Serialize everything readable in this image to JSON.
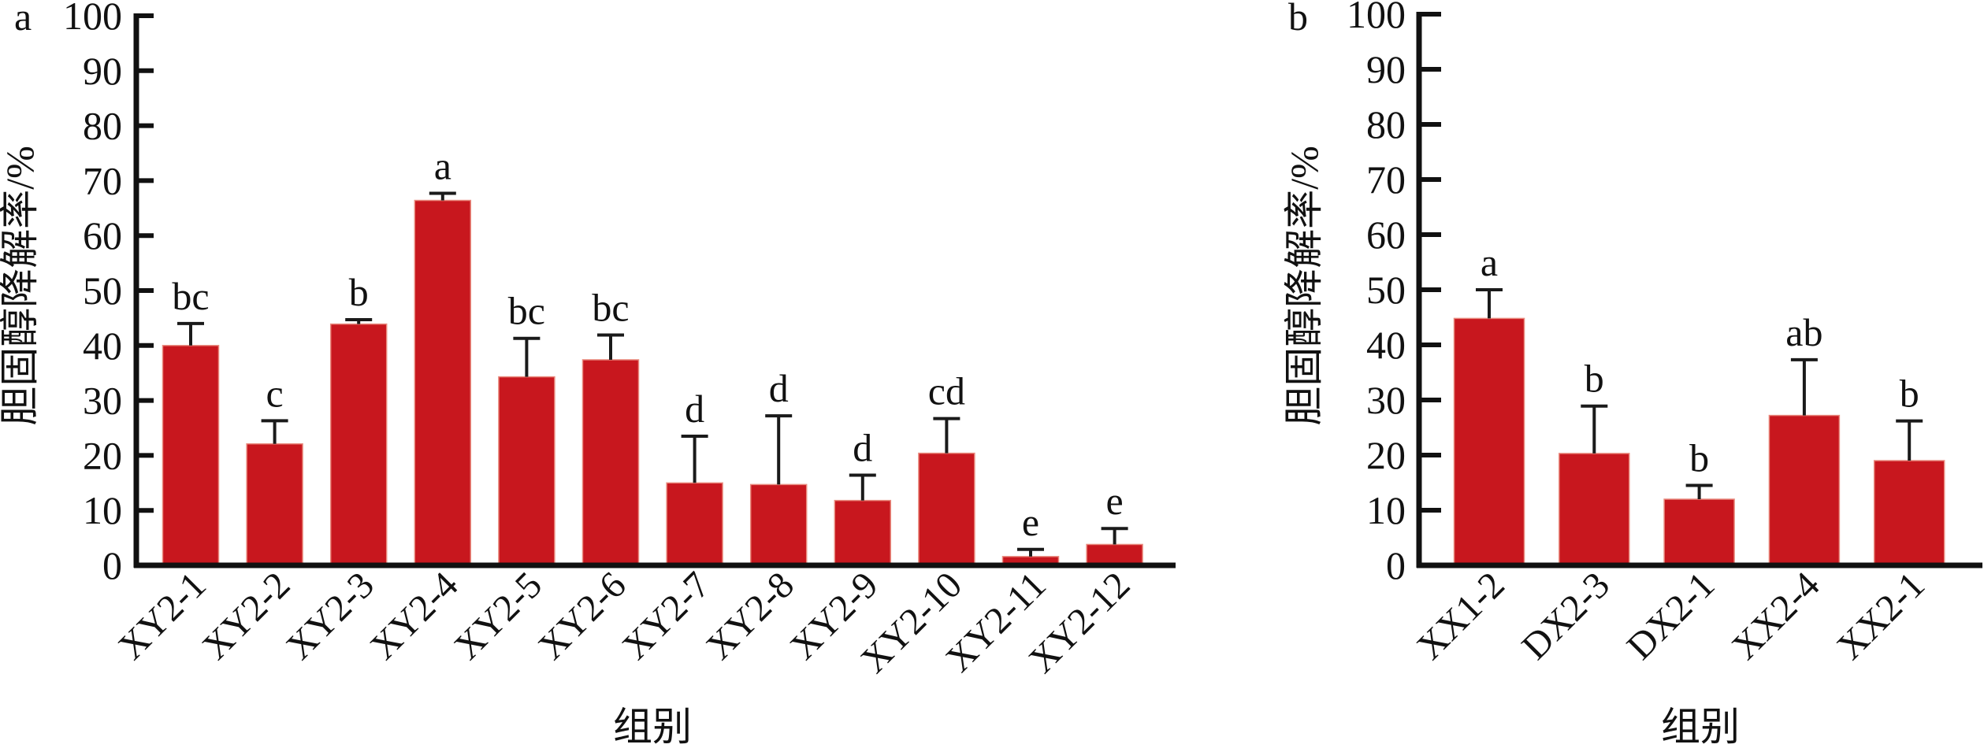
{
  "chart_data": [
    {
      "type": "bar",
      "panel_label": "a",
      "title": "",
      "xlabel": "组别",
      "ylabel": "胆固醇降解率/%",
      "ylim": [
        0,
        100
      ],
      "yticks": [
        0,
        10,
        20,
        30,
        40,
        50,
        60,
        70,
        80,
        90,
        100
      ],
      "grid": false,
      "categories": [
        "XY2-1",
        "XY2-2",
        "XY2-3",
        "XY2-4",
        "XY2-5",
        "XY2-6",
        "XY2-7",
        "XY2-8",
        "XY2-9",
        "XY2-10",
        "XY2-11",
        "XY2-12"
      ],
      "values": [
        40.0,
        22.1,
        43.9,
        66.4,
        34.3,
        37.4,
        15.0,
        14.7,
        11.8,
        20.4,
        1.6,
        3.8
      ],
      "error": [
        4.0,
        4.2,
        0.8,
        1.3,
        7.0,
        4.5,
        8.5,
        12.5,
        4.6,
        6.3,
        1.3,
        2.9
      ],
      "significance": [
        "bc",
        "c",
        "b",
        "a",
        "bc",
        "bc",
        "d",
        "d",
        "d",
        "cd",
        "e",
        "e"
      ],
      "bar_color": "#C8171E"
    },
    {
      "type": "bar",
      "panel_label": "b",
      "title": "",
      "xlabel": "组别",
      "ylabel": "胆固醇降解率/%",
      "ylim": [
        0,
        100
      ],
      "yticks": [
        0,
        10,
        20,
        30,
        40,
        50,
        60,
        70,
        80,
        90,
        100
      ],
      "grid": false,
      "categories": [
        "XX1-2",
        "DX2-3",
        "DX2-1",
        "XX2-4",
        "XX2-1"
      ],
      "values": [
        44.8,
        20.3,
        12.0,
        27.2,
        19.0
      ],
      "error": [
        5.2,
        8.6,
        2.5,
        10.1,
        7.2
      ],
      "significance": [
        "a",
        "b",
        "b",
        "ab",
        "b"
      ],
      "bar_color": "#C8171E"
    }
  ]
}
